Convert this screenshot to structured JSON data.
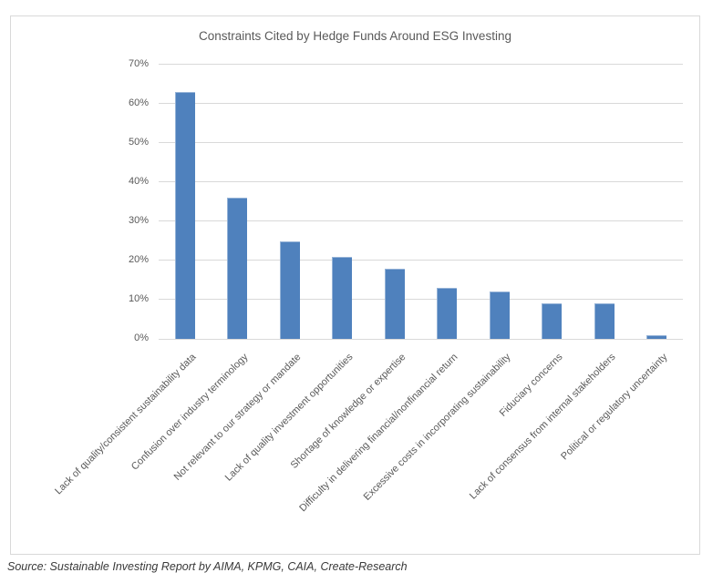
{
  "chart_data": {
    "type": "bar",
    "title": "Constraints Cited by Hedge Funds Around ESG Investing",
    "categories": [
      "Lack of quality/consistent sustainability data",
      "Confusion over industry terminology",
      "Not relevant to our strategy or mandate",
      "Lack of quality investment opportunities",
      "Shortage of knowledge or expertise",
      "Difficulty in delivering financial/nonfinancial return",
      "Excessive costs in incorporating sustainability",
      "Fiduciary concerns",
      "Lack of consensus from internal stakeholders",
      "Political or regulatory uncertainty"
    ],
    "values": [
      63,
      36,
      25,
      21,
      18,
      13,
      12,
      9,
      9,
      1
    ],
    "xlabel": "",
    "ylabel": "",
    "ylim": [
      0,
      70
    ],
    "ytick_step": 10,
    "ytick_labels": [
      "0%",
      "10%",
      "20%",
      "30%",
      "40%",
      "50%",
      "60%",
      "70%"
    ],
    "grid": true,
    "legend": "none",
    "bar_color": "#4f81bd",
    "bar_border_color": "#95b3d7",
    "grid_color": "#d9d9d9",
    "text_color": "#595959"
  },
  "source_note": "Source: Sustainable Investing Report by AIMA, KPMG, CAIA, Create-Research"
}
